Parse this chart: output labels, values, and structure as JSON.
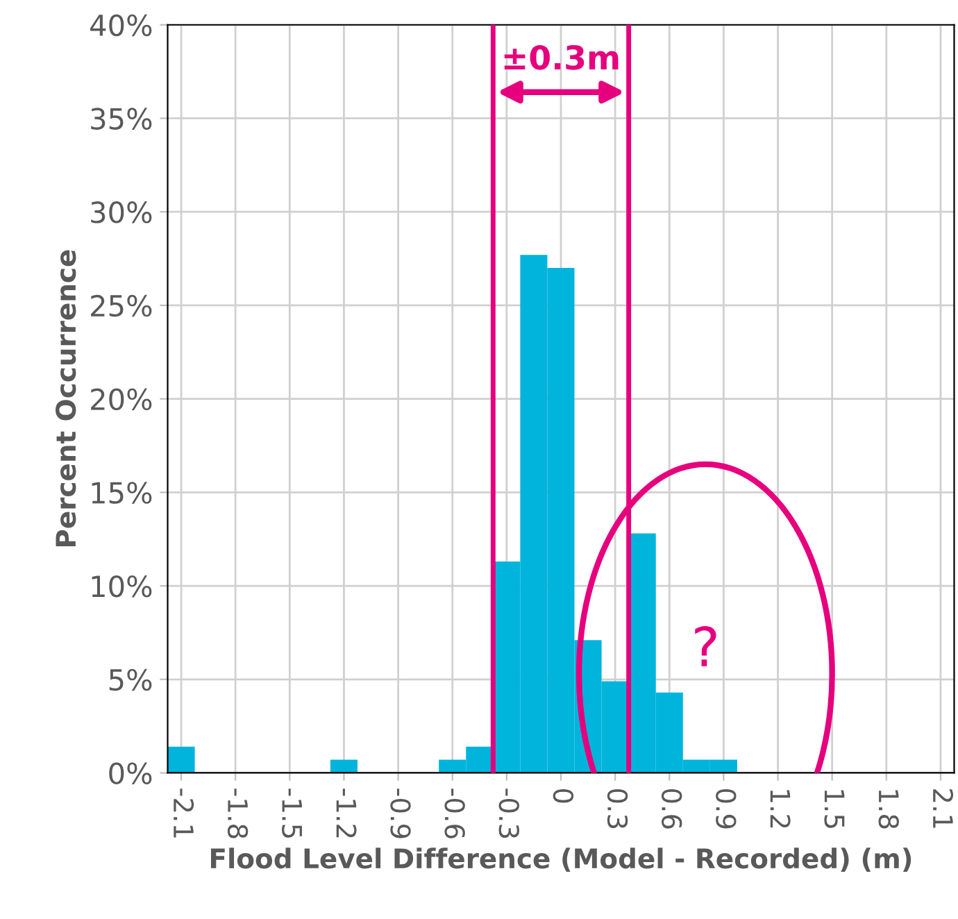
{
  "chart_data": {
    "type": "bar",
    "xlabel": "Flood Level Difference (Model - Recorded) (m)",
    "ylabel": "Percent Occurrence",
    "x": [
      -2.1,
      -1.95,
      -1.8,
      -1.65,
      -1.5,
      -1.35,
      -1.2,
      -1.05,
      -0.9,
      -0.75,
      -0.6,
      -0.45,
      -0.3,
      -0.15,
      0,
      0.15,
      0.3,
      0.45,
      0.6,
      0.75,
      0.9
    ],
    "values": [
      1.4,
      0,
      0,
      0,
      0,
      0,
      0.7,
      0,
      0,
      0,
      0.7,
      1.4,
      11.3,
      27.7,
      27.0,
      7.1,
      4.9,
      12.8,
      4.3,
      0.7,
      0.7
    ],
    "color": "#00b4dc",
    "xlim": [
      -2.175,
      2.175
    ],
    "xticks": [
      -2.1,
      -1.8,
      -1.5,
      -1.2,
      -0.9,
      -0.6,
      -0.3,
      0,
      0.3,
      0.6,
      0.9,
      1.2,
      1.5,
      1.8,
      2.1
    ],
    "ylim": [
      0,
      40
    ],
    "yticks": [
      {
        "value": 0,
        "label": "0%"
      },
      {
        "value": 5,
        "label": "5%"
      },
      {
        "value": 10,
        "label": "10%"
      },
      {
        "value": 15,
        "label": "15%"
      },
      {
        "value": 20,
        "label": "20%"
      },
      {
        "value": 25,
        "label": "25%"
      },
      {
        "value": 30,
        "label": "30%"
      },
      {
        "value": 35,
        "label": "35%"
      },
      {
        "value": 40,
        "label": "40%"
      }
    ],
    "grid": true,
    "ref_lines": [
      {
        "axis": "x",
        "value": -0.375,
        "color": "#e6007e"
      },
      {
        "axis": "x",
        "value": 0.375,
        "color": "#e6007e"
      }
    ],
    "annotations": [
      "±0.3m",
      "?"
    ]
  }
}
